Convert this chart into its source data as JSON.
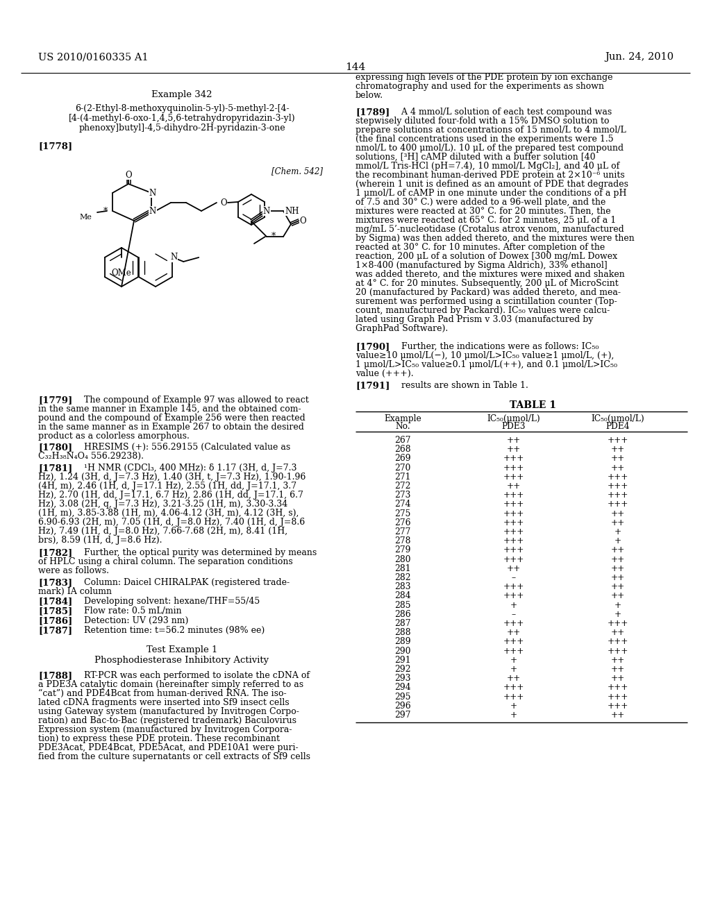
{
  "background_color": "#ffffff",
  "header_left": "US 2010/0160335 A1",
  "header_right": "Jun. 24, 2010",
  "page_number": "144",
  "table_rows": [
    [
      "267",
      "++",
      "+++"
    ],
    [
      "268",
      "++",
      "++"
    ],
    [
      "269",
      "+++",
      "++"
    ],
    [
      "270",
      "+++",
      "++"
    ],
    [
      "271",
      "+++",
      "+++"
    ],
    [
      "272",
      "++",
      "+++"
    ],
    [
      "273",
      "+++",
      "+++"
    ],
    [
      "274",
      "+++",
      "+++"
    ],
    [
      "275",
      "+++",
      "++"
    ],
    [
      "276",
      "+++",
      "++"
    ],
    [
      "277",
      "+++",
      "+"
    ],
    [
      "278",
      "+++",
      "+"
    ],
    [
      "279",
      "+++",
      "++"
    ],
    [
      "280",
      "+++",
      "++"
    ],
    [
      "281",
      "++",
      "++"
    ],
    [
      "282",
      "–",
      "++"
    ],
    [
      "283",
      "+++",
      "++"
    ],
    [
      "284",
      "+++",
      "++"
    ],
    [
      "285",
      "+",
      "+"
    ],
    [
      "286",
      "–",
      "+"
    ],
    [
      "287",
      "+++",
      "+++"
    ],
    [
      "288",
      "++",
      "++"
    ],
    [
      "289",
      "+++",
      "+++"
    ],
    [
      "290",
      "+++",
      "+++"
    ],
    [
      "291",
      "+",
      "++"
    ],
    [
      "292",
      "+",
      "++"
    ],
    [
      "293",
      "++",
      "++"
    ],
    [
      "294",
      "+++",
      "+++"
    ],
    [
      "295",
      "+++",
      "+++"
    ],
    [
      "296",
      "+",
      "+++"
    ],
    [
      "297",
      "+",
      "++"
    ]
  ]
}
